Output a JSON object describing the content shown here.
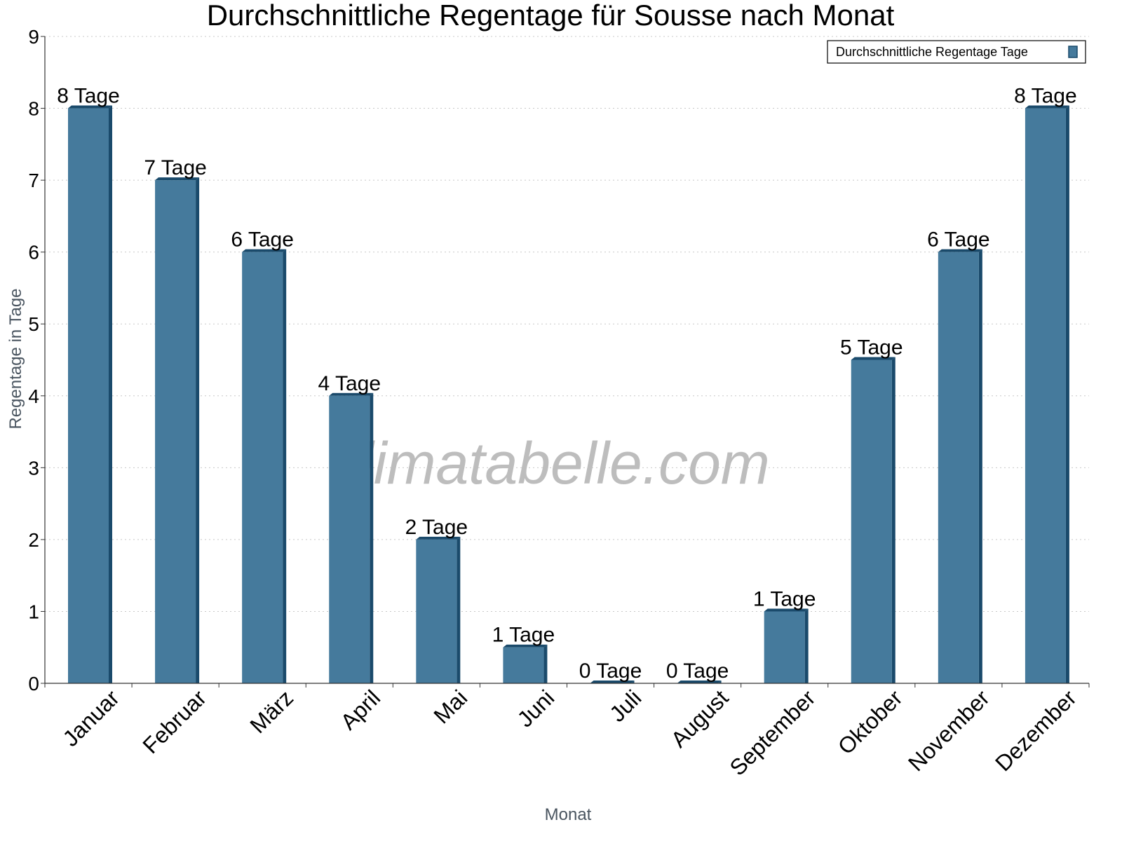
{
  "chart_data": {
    "type": "bar",
    "title": "Durchschnittliche Regentage für Sousse nach Monat",
    "xlabel": "Monat",
    "ylabel": "Regentage in Tage",
    "ylim": [
      0,
      9
    ],
    "yticks": [
      "0",
      "1",
      "2",
      "3",
      "4",
      "5",
      "6",
      "7",
      "8",
      "9"
    ],
    "grid": true,
    "legend_position": "top-right",
    "watermark": "klimatabelle.com",
    "categories": [
      "Januar",
      "Februar",
      "März",
      "April",
      "Mai",
      "Juni",
      "Juli",
      "August",
      "September",
      "Oktober",
      "November",
      "Dezember"
    ],
    "series": [
      {
        "name": "Durchschnittliche Regentage Tage",
        "values": [
          8,
          7,
          6,
          4,
          2,
          0.5,
          0,
          0,
          1,
          4.5,
          6,
          8
        ],
        "data_labels": [
          "8 Tage",
          "7 Tage",
          "6 Tage",
          "4 Tage",
          "2 Tage",
          "1 Tage",
          "0 Tage",
          "0 Tage",
          "1 Tage",
          "5 Tage",
          "6 Tage",
          "8 Tage"
        ],
        "color": "#457a9c",
        "side_color": "#1a4a6b"
      }
    ]
  }
}
